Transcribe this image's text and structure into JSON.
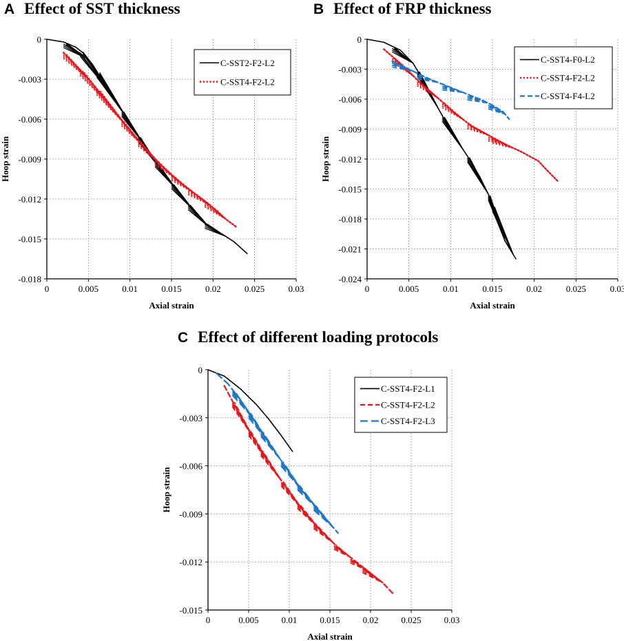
{
  "figure": {
    "panels": [
      {
        "letter": "A",
        "title": "Effect of SST thickness"
      },
      {
        "letter": "B",
        "title": "Effect of FRP thickness"
      },
      {
        "letter": "C",
        "title": "Effect of different loading protocols"
      }
    ]
  },
  "colors": {
    "black": "#000000",
    "red": "#e8161b",
    "blue": "#1f77c8",
    "grid": "#9a9a9a"
  },
  "chart_data": [
    {
      "type": "line",
      "title": "Effect of SST thickness",
      "xlabel": "Axial strain",
      "ylabel": "Hoop strain",
      "xlim": [
        0,
        0.03
      ],
      "ylim": [
        -0.018,
        0
      ],
      "xticks": [
        0,
        0.005,
        0.01,
        0.015,
        0.02,
        0.025,
        0.03
      ],
      "xtick_labels": [
        "0",
        "0.005",
        "0.01",
        "0.015",
        "0.02",
        "0.025",
        "0.03"
      ],
      "yticks": [
        0,
        -0.003,
        -0.006,
        -0.009,
        -0.012,
        -0.015,
        -0.018
      ],
      "ytick_labels": [
        "0",
        "-0.003",
        "-0.006",
        "-0.009",
        "-0.012",
        "-0.015",
        "-0.018"
      ],
      "grid": true,
      "legend_position": "top-right",
      "series": [
        {
          "name": "C-SST2-F2-L2",
          "color": "#000000",
          "dash": "solid",
          "width": 1.6,
          "x": [
            0,
            0.002,
            0.0035,
            0.0045,
            0.0055,
            0.0065,
            0.0075,
            0.0085,
            0.0095,
            0.0105,
            0.012,
            0.0135,
            0.015,
            0.0165,
            0.018,
            0.0195,
            0.021,
            0.0225,
            0.0241
          ],
          "y": [
            0,
            -0.0002,
            -0.0006,
            -0.0011,
            -0.0019,
            -0.0029,
            -0.0039,
            -0.0049,
            -0.0058,
            -0.0068,
            -0.0082,
            -0.0096,
            -0.0108,
            -0.012,
            -0.0131,
            -0.0141,
            -0.0146,
            -0.0152,
            -0.0161
          ]
        },
        {
          "name": "C-SST4-F2-L2",
          "color": "#e8161b",
          "dash": "dot",
          "width": 2.4,
          "x": [
            0.002,
            0.0045,
            0.0065,
            0.0085,
            0.0105,
            0.0125,
            0.0145,
            0.0165,
            0.0185,
            0.0205,
            0.0215,
            0.0228
          ],
          "y": [
            -0.001,
            -0.0026,
            -0.0041,
            -0.0057,
            -0.0072,
            -0.0087,
            -0.0099,
            -0.011,
            -0.0119,
            -0.0129,
            -0.0135,
            -0.0141
          ]
        }
      ]
    },
    {
      "type": "line",
      "title": "Effect of FRP thickness",
      "xlabel": "Axial strain",
      "ylabel": "Hoop strain",
      "xlim": [
        0,
        0.03
      ],
      "ylim": [
        -0.024,
        0
      ],
      "xticks": [
        0,
        0.005,
        0.01,
        0.015,
        0.02,
        0.025,
        0.03
      ],
      "xtick_labels": [
        "0",
        "0.005",
        "0.01",
        "0.015",
        "0.02",
        "0.025",
        "0.03"
      ],
      "yticks": [
        0,
        -0.003,
        -0.006,
        -0.009,
        -0.012,
        -0.015,
        -0.018,
        -0.021,
        -0.024
      ],
      "ytick_labels": [
        "0",
        "-0.003",
        "-0.006",
        "-0.009",
        "-0.012",
        "-0.015",
        "-0.018",
        "-0.021",
        "-0.024"
      ],
      "grid": true,
      "legend_position": "top-right",
      "series": [
        {
          "name": "C-SST4-F0-L2",
          "color": "#000000",
          "dash": "solid",
          "width": 1.6,
          "x": [
            0,
            0.002,
            0.004,
            0.0055,
            0.0065,
            0.0075,
            0.0085,
            0.0095,
            0.0105,
            0.012,
            0.0135,
            0.0145,
            0.0155,
            0.0165,
            0.0178
          ],
          "y": [
            0,
            -0.0003,
            -0.0011,
            -0.0024,
            -0.0038,
            -0.0053,
            -0.0069,
            -0.0084,
            -0.0098,
            -0.0117,
            -0.0138,
            -0.0155,
            -0.0178,
            -0.0202,
            -0.022
          ]
        },
        {
          "name": "C-SST4-F2-L2",
          "color": "#e8161b",
          "dash": "dot",
          "width": 2.4,
          "x": [
            0.002,
            0.0045,
            0.0065,
            0.0085,
            0.0105,
            0.0125,
            0.0145,
            0.0165,
            0.0185,
            0.0205,
            0.0215,
            0.0228
          ],
          "y": [
            -0.001,
            -0.0028,
            -0.0045,
            -0.0059,
            -0.0074,
            -0.0087,
            -0.0096,
            -0.0105,
            -0.0113,
            -0.0122,
            -0.0131,
            -0.0142
          ]
        },
        {
          "name": "C-SST4-F4-L2",
          "color": "#1f77c8",
          "dash": "dash",
          "width": 2.2,
          "x": [
            0.003,
            0.0045,
            0.006,
            0.0075,
            0.009,
            0.0105,
            0.012,
            0.0135,
            0.015,
            0.0163,
            0.017
          ],
          "y": [
            -0.0022,
            -0.0028,
            -0.0034,
            -0.004,
            -0.0045,
            -0.005,
            -0.0055,
            -0.006,
            -0.0066,
            -0.0073,
            -0.008
          ]
        }
      ]
    },
    {
      "type": "line",
      "title": "Effect of different loading protocols",
      "xlabel": "Axial strain",
      "ylabel": "Hoop strain",
      "xlim": [
        0,
        0.03
      ],
      "ylim": [
        -0.015,
        0
      ],
      "xticks": [
        0,
        0.005,
        0.01,
        0.015,
        0.02,
        0.025,
        0.03
      ],
      "xtick_labels": [
        "0",
        "0.005",
        "0.01",
        "0.015",
        "0.02",
        "0.025",
        "0.03"
      ],
      "yticks": [
        0,
        -0.003,
        -0.006,
        -0.009,
        -0.012,
        -0.015
      ],
      "ytick_labels": [
        "0",
        "-0.003",
        "-0.006",
        "-0.009",
        "-0.012",
        "-0.015"
      ],
      "grid": true,
      "legend_position": "top-right",
      "series": [
        {
          "name": "C-SST4-F2-L1",
          "color": "#000000",
          "dash": "solid",
          "width": 1.6,
          "x": [
            0,
            0.002,
            0.004,
            0.006,
            0.0075,
            0.009,
            0.0104
          ],
          "y": [
            0,
            -0.0004,
            -0.0012,
            -0.0022,
            -0.0031,
            -0.0041,
            -0.0051
          ]
        },
        {
          "name": "C-SST4-F2-L2",
          "color": "#e8161b",
          "dash": "dash",
          "width": 2.2,
          "x": [
            0.002,
            0.004,
            0.006,
            0.008,
            0.01,
            0.012,
            0.014,
            0.016,
            0.018,
            0.02,
            0.0215,
            0.0228
          ],
          "y": [
            -0.001,
            -0.0029,
            -0.0046,
            -0.0062,
            -0.0076,
            -0.009,
            -0.0101,
            -0.0111,
            -0.0119,
            -0.0127,
            -0.0133,
            -0.014
          ]
        },
        {
          "name": "C-SST4-F2-L3",
          "color": "#1f77c8",
          "dash": "longdash",
          "width": 2.2,
          "x": [
            0.001,
            0.0025,
            0.004,
            0.0055,
            0.007,
            0.0085,
            0.01,
            0.0115,
            0.013,
            0.0145,
            0.016
          ],
          "y": [
            -0.0002,
            -0.0009,
            -0.0019,
            -0.003,
            -0.0042,
            -0.0053,
            -0.0064,
            -0.0075,
            -0.0084,
            -0.0093,
            -0.0102
          ]
        }
      ]
    }
  ]
}
